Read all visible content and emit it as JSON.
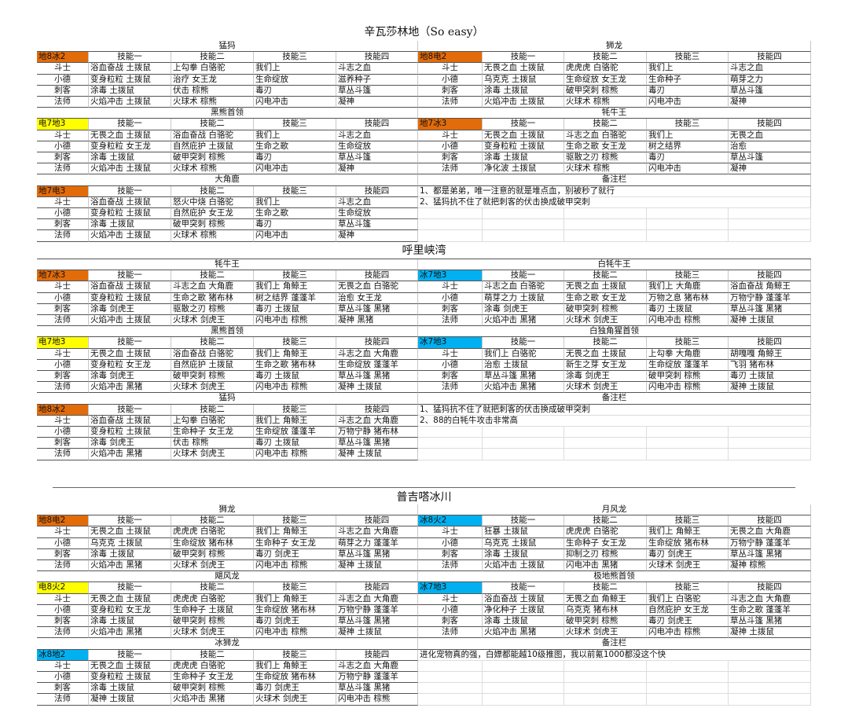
{
  "roles": [
    "斗士",
    "小德",
    "刺客",
    "法师"
  ],
  "skill_headers": [
    "技能一",
    "技能二",
    "技能三",
    "技能四"
  ],
  "sections": [
    {
      "title": "辛瓦莎林地（So easy）",
      "blocks": [
        {
          "title": "猛犸",
          "tag": "地8冰2",
          "tag_color": "#e26b0a",
          "rows": [
            [
              "浴血奋战 土拨鼠",
              "上勾拳 白骆驼",
              "我们上",
              "斗志之血"
            ],
            [
              "变身粒粒 土拨鼠",
              "治疗 女王龙",
              "生命绽放",
              "滋养种子"
            ],
            [
              "涂毒 土拨鼠",
              "伏击 棕熊",
              "毒刃",
              "草丛斗篷"
            ],
            [
              "火焰冲击 土拨鼠",
              "火球术 棕熊",
              "闪电冲击",
              "凝神"
            ]
          ]
        },
        {
          "title": "黑熊首领",
          "tag": "电7地3",
          "tag_color": "#ffff00",
          "rows": [
            [
              "无畏之血 土拨鼠",
              "浴血奋战 白骆驼",
              "我们上",
              "斗志之血"
            ],
            [
              "变身粒粒 女王龙",
              "自然庇护 土拨鼠",
              "生命之歌",
              "生命绽放"
            ],
            [
              "涂毒 土拨鼠",
              "破甲突刺 棕熊",
              "毒刃",
              "草丛斗篷"
            ],
            [
              "火焰冲击 土拨鼠",
              "火球术 棕熊",
              "闪电冲击",
              "凝神"
            ]
          ]
        },
        {
          "title": "大角鹿",
          "tag": "地7电3",
          "tag_color": "#e26b0a",
          "rows": [
            [
              "浴血奋战 土拨鼠",
              "怒火中烧 白骆驼",
              "我们上",
              "斗志之血"
            ],
            [
              "变身粒粒 土拨鼠",
              "自然庇护 女王龙",
              "生命之歌",
              "生命绽放"
            ],
            [
              "涂毒 土拨鼠",
              "破甲突刺 棕熊",
              "毒刃",
              "草丛斗篷"
            ],
            [
              "火焰冲击 土拨鼠",
              "火球术 棕熊",
              "闪电冲击",
              "凝神"
            ]
          ]
        },
        {
          "title": "狮龙",
          "tag": "地8电2",
          "tag_color": "#e26b0a",
          "rows": [
            [
              "无畏之血 土拨鼠",
              "虎虎虎 白骆驼",
              "我们上",
              "斗志之血"
            ],
            [
              "乌克克 土拨鼠",
              "生命绽放 女王龙",
              "生命种子",
              "萌芽之力"
            ],
            [
              "涂毒 土拨鼠",
              "破甲突刺 棕熊",
              "毒刃",
              "草丛斗篷"
            ],
            [
              "火焰冲击 土拨鼠",
              "火球术 棕熊",
              "闪电冲击",
              "凝神"
            ]
          ]
        },
        {
          "title": "牦牛王",
          "tag": "地7冰3",
          "tag_color": "#e26b0a",
          "rows": [
            [
              "无畏之血 土拨鼠",
              "斗志之血 白骆驼",
              "我们上",
              "无畏之血"
            ],
            [
              "变身粒粒 土拨鼠",
              "生命之歌 女王龙",
              "树之结界",
              "治愈"
            ],
            [
              "涂毒 土拨鼠",
              "驱散之刃 棕熊",
              "毒刃",
              "草丛斗篷"
            ],
            [
              "净化波 土拨鼠",
              "火球术 棕熊",
              "闪电冲击",
              "凝神"
            ]
          ]
        }
      ],
      "notes": {
        "title": "备注栏",
        "lines": [
          "1、都是弟弟，唯一注意的就是堆点血，别被秒了就行",
          "2、猛犸抗不住了就把刺客的伏击换成破甲突刺"
        ]
      }
    },
    {
      "title": "呼里峡湾",
      "blocks": [
        {
          "title": "牦牛王",
          "tag": "地7冰3",
          "tag_color": "#e26b0a",
          "rows": [
            [
              "浴血奋战 土拨鼠",
              "斗志之血 大角鹿",
              "我们上 角鲸王",
              "无畏之血 白骆驼"
            ],
            [
              "变身粒粒 土拨鼠",
              "生命之歌 猪布林",
              "树之结界 蓬蓬羊",
              "治愈 女王龙"
            ],
            [
              "涂毒 剑虎王",
              "驱散之刃 棕熊",
              "毒刃 土拨鼠",
              "草丛斗篷 黑猪"
            ],
            [
              "火焰冲击 土拨鼠",
              "火球术 剑虎王",
              "闪电冲击 棕熊",
              "凝神 黑猪"
            ]
          ]
        },
        {
          "title": "黑熊首领",
          "tag": "电7地3",
          "tag_color": "#ffff00",
          "rows": [
            [
              "无畏之血 土拨鼠",
              "浴血奋战 白骆驼",
              "我们上 角鲸王",
              "斗志之血 大角鹿"
            ],
            [
              "变身粒粒 女王龙",
              "自然庇护 土拨鼠",
              "生命之歌 猪布林",
              "生命绽放 蓬蓬羊"
            ],
            [
              "涂毒 剑虎王",
              "破甲突刺 棕熊",
              "毒刃 土拨鼠",
              "草丛斗篷 黑猪"
            ],
            [
              "火焰冲击 黑猪",
              "火球术 剑虎王",
              "闪电冲击 棕熊",
              "凝神 土拨鼠"
            ]
          ]
        },
        {
          "title": "猛犸",
          "tag": "地8冰2",
          "tag_color": "#e26b0a",
          "rows": [
            [
              "浴血奋战 土拨鼠",
              "上勾拳 白骆驼",
              "我们上 角鲸王",
              "斗志之血 大角鹿"
            ],
            [
              "变身粒粒 土拨鼠",
              "生命种子 女王龙",
              "生命绽放 蓬蓬羊",
              "万物宁静 猪布林"
            ],
            [
              "涂毒 剑虎王",
              "伏击 棕熊",
              "毒刃 土拨鼠",
              "草丛斗篷 黑猪"
            ],
            [
              "火焰冲击 黑猪",
              "火球术 剑虎王",
              "闪电冲击 棕熊",
              "凝神 土拨鼠"
            ]
          ]
        },
        {
          "title": "白牦牛王",
          "tag": "冰7地3",
          "tag_color": "#00b0f0",
          "rows": [
            [
              "斗志之血 白骆驼",
              "无畏之血 土拨鼠",
              "我们上 大角鹿",
              "浴血奋战 角鲸王"
            ],
            [
              "萌芽之力 土拨鼠",
              "生命之歌 女王龙",
              "万物之息 猪布林",
              "万物宁静 蓬蓬羊"
            ],
            [
              "涂毒 剑虎王",
              "破甲突刺 棕熊",
              "毒刃 土拨鼠",
              "草丛斗篷 黑猪"
            ],
            [
              "火焰冲击 黑猪",
              "火球术 剑虎王",
              "闪电冲击 棕熊",
              "凝神 土拨鼠"
            ]
          ]
        },
        {
          "title": "白独角猩首领",
          "tag": "冰7地3",
          "tag_color": "#00b0f0",
          "rows": [
            [
              "我们上 白骆驼",
              "无畏之血 土拨鼠",
              "上勾拳 大角鹿",
              "胡嘎嘎 角鲸王"
            ],
            [
              "治愈 土拨鼠",
              "新生之芽 女王龙",
              "生命绽放 蓬蓬羊",
              "飞羽 猪布林"
            ],
            [
              "草丛斗篷 黑猪",
              "涂毒 剑虎王",
              "破甲突刺 棕熊",
              "毒刃 土拨鼠"
            ],
            [
              "火焰冲击 黑猪",
              "火球术 剑虎王",
              "闪电冲击 棕熊",
              "凝神 土拨鼠"
            ]
          ]
        }
      ],
      "notes": {
        "title": "备注栏",
        "lines": [
          "1、猛犸抗不住了就把刺客的伏击换成破甲突刺",
          "2、88的白牦牛攻击非常高"
        ]
      }
    },
    {
      "title": "普吉嗒冰川",
      "blocks": [
        {
          "title": "狮龙",
          "tag": "地8电2",
          "tag_color": "#e26b0a",
          "rows": [
            [
              "无畏之血 土拨鼠",
              "虎虎虎 白骆驼",
              "我们上 角鲸王",
              "斗志之血 大角鹿"
            ],
            [
              "乌克克 土拨鼠",
              "生命绽放 猪布林",
              "生命种子 女王龙",
              "萌芽之力 蓬蓬羊"
            ],
            [
              "涂毒 土拨鼠",
              "破甲突刺 棕熊",
              "毒刃 剑虎王",
              "草丛斗篷 黑猪"
            ],
            [
              "火焰冲击 黑猪",
              "火球术 剑虎王",
              "闪电冲击 棕熊",
              "凝神 土拨鼠"
            ]
          ]
        },
        {
          "title": "飓风龙",
          "tag": "电8火2",
          "tag_color": "#ffff00",
          "rows": [
            [
              "无畏之血 土拨鼠",
              "虎虎虎 白骆驼",
              "我们上 角鲸王",
              "斗志之血 大角鹿"
            ],
            [
              "变身粒粒 女王龙",
              "生命种子 土拨鼠",
              "生命绽放 猪布林",
              "万物宁静 蓬蓬羊"
            ],
            [
              "涂毒 土拨鼠",
              "破甲突刺 棕熊",
              "毒刃 剑虎王",
              "草丛斗篷 黑猪"
            ],
            [
              "火焰冲击 黑猪",
              "火球术 剑虎王",
              "闪电冲击 棕熊",
              "凝神 土拨鼠"
            ]
          ]
        },
        {
          "title": "冰狮龙",
          "tag": "冰8地2",
          "tag_color": "#00b0f0",
          "rows": [
            [
              "无畏之血 土拨鼠",
              "虎虎虎 白骆驼",
              "我们上 角鲸王",
              "斗志之血 大角鹿"
            ],
            [
              "变身粒粒 土拨鼠",
              "生命种子 女王龙",
              "生命绽放 猪布林",
              "万物宁静 蓬蓬羊"
            ],
            [
              "涂毒 土拨鼠",
              "破甲突刺 棕熊",
              "毒刃 剑虎王",
              "草丛斗篷 黑猪"
            ],
            [
              "凝神 土拨鼠",
              "火焰冲击 黑猪",
              "火球术 剑虎王",
              "闪电冲击 棕熊"
            ]
          ]
        },
        {
          "title": "月风龙",
          "tag": "冰8火2",
          "tag_color": "#00b0f0",
          "rows": [
            [
              "狂暴 土拨鼠",
              "虎虎虎 白骆驼",
              "我们上 角鲸王",
              "无畏之血 大角鹿"
            ],
            [
              "乌克克 土拨鼠",
              "生命种子 女王龙",
              "生命绽放 猪布林",
              "万物宁静 蓬蓬羊"
            ],
            [
              "涂毒 土拨鼠",
              "抑制之刃 棕熊",
              "毒刃 剑虎王",
              "草丛斗篷 黑猪"
            ],
            [
              "火焰冲击 土拨鼠",
              "闪电冲击 黑猪",
              "火球术 剑虎王",
              "凝神 棕熊"
            ]
          ]
        },
        {
          "title": "极地熊首领",
          "tag": "冰7地3",
          "tag_color": "#00b0f0",
          "rows": [
            [
              "浴血奋战 土拨鼠",
              "无畏之血 角鲸王",
              "我们上 白骆驼",
              "斗志之血 大角鹿"
            ],
            [
              "净化种子 土拨鼠",
              "乌克克 猪布林",
              "自然庇护 女王龙",
              "生命之歌 蓬蓬羊"
            ],
            [
              "涂毒 土拨鼠",
              "破甲突刺 棕熊",
              "毒刃 剑虎王",
              "草丛斗篷 黑猪"
            ],
            [
              "火焰冲击 黑猪",
              "火球术 剑虎王",
              "闪电冲击 棕熊",
              "凝神 土拨鼠"
            ]
          ]
        }
      ],
      "notes": {
        "title": "备注栏",
        "lines": [
          "进化宠物真的强，白嫖都能越10级推图，我以前氪1000都没这个快"
        ]
      }
    }
  ]
}
